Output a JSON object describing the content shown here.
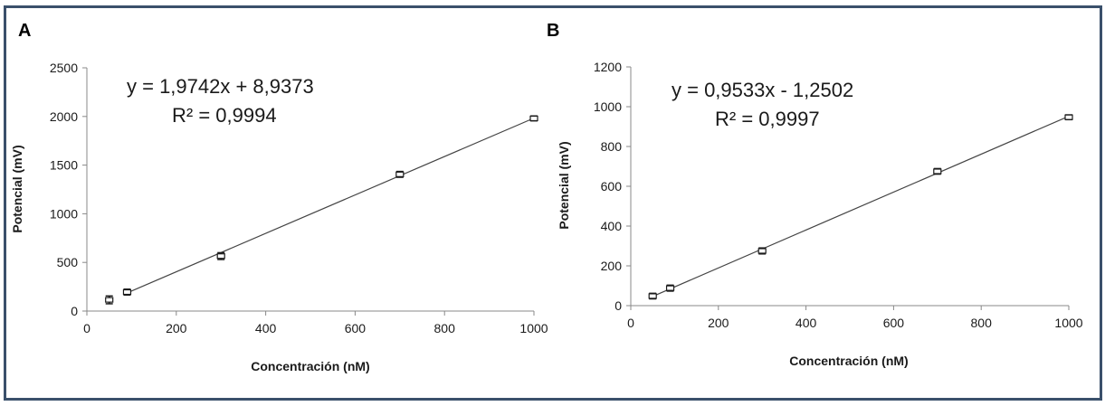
{
  "chart_data": [
    {
      "type": "scatter",
      "panel_label": "A",
      "xlabel": "Concentración (nM)",
      "ylabel": "Potencial (mV)",
      "xlim": [
        0,
        1000
      ],
      "ylim": [
        0,
        2500
      ],
      "xticks": [
        0,
        200,
        400,
        600,
        800,
        1000
      ],
      "yticks": [
        0,
        500,
        1000,
        1500,
        2000,
        2500
      ],
      "x": [
        50,
        90,
        300,
        700,
        1000
      ],
      "y": [
        115,
        195,
        565,
        1405,
        1980
      ],
      "error": [
        40,
        30,
        35,
        30,
        25
      ],
      "trendline": {
        "slope": 1.9742,
        "intercept": 8.9373,
        "x_range": [
          90,
          1000
        ]
      },
      "equation": "y = 1,9742x + 8,9373",
      "r2": "R² = 0,9994",
      "grid": false,
      "legend": "none"
    },
    {
      "type": "scatter",
      "panel_label": "B",
      "xlabel": "Concentración (nM)",
      "ylabel": "Potencial (mV)",
      "xlim": [
        0,
        1000
      ],
      "ylim": [
        0,
        1200
      ],
      "xticks": [
        0,
        200,
        400,
        600,
        800,
        1000
      ],
      "yticks": [
        0,
        200,
        400,
        600,
        800,
        1000,
        1200
      ],
      "x": [
        50,
        90,
        300,
        700,
        1000
      ],
      "y": [
        48,
        88,
        275,
        675,
        947
      ],
      "error": [
        14,
        15,
        15,
        14,
        12
      ],
      "trendline": {
        "slope": 0.9533,
        "intercept": -1.2502,
        "x_range": [
          50,
          1000
        ]
      },
      "equation": "y = 0,9533x - 1,2502",
      "r2": "R² = 0,9997",
      "grid": false,
      "legend": "none"
    }
  ],
  "colors": {
    "frame": "#3a506b",
    "axis": "#888888",
    "line": "#444444",
    "marker": "#1a1a1a"
  }
}
